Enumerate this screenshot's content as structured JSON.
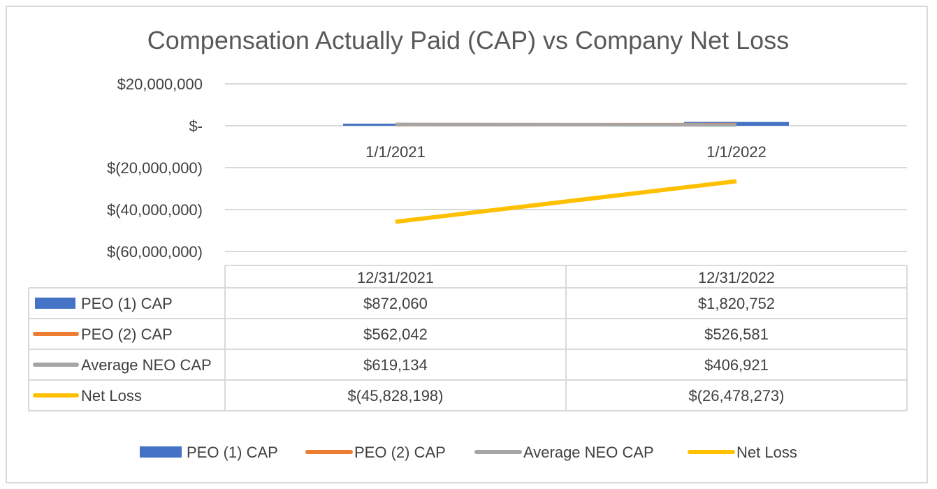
{
  "chart_data": {
    "type": "bar+line with data table",
    "title": "Compensation Actually Paid (CAP) vs Company Net Loss",
    "y_ticks": [
      "$20,000,000",
      "$-",
      "$(20,000,000)",
      "$(40,000,000)",
      "$(60,000,000)"
    ],
    "y_tick_values": [
      20000000,
      0,
      -20000000,
      -40000000,
      -60000000
    ],
    "ylim": [
      -60000000,
      20000000
    ],
    "axis_category_labels": [
      "1/1/2021",
      "1/1/2022"
    ],
    "table_headers": [
      "12/31/2021",
      "12/31/2022"
    ],
    "series": [
      {
        "name": "PEO (1) CAP",
        "kind": "bar",
        "color": "#4472C4",
        "values": [
          872060,
          1820752
        ],
        "labels": [
          "$872,060",
          "$1,820,752"
        ]
      },
      {
        "name": "PEO (2) CAP",
        "kind": "line",
        "color": "#ED7D31",
        "values": [
          562042,
          526581
        ],
        "labels": [
          "$562,042",
          "$526,581"
        ]
      },
      {
        "name": "Average NEO CAP",
        "kind": "line",
        "color": "#A5A5A5",
        "values": [
          619134,
          406921
        ],
        "labels": [
          "$619,134",
          "$406,921"
        ]
      },
      {
        "name": "Net Loss",
        "kind": "line",
        "color": "#FFC000",
        "values": [
          -45828198,
          -26478273
        ],
        "labels": [
          "$(45,828,198)",
          "$(26,478,273)"
        ]
      }
    ],
    "grid": true,
    "legend": "bottom"
  }
}
